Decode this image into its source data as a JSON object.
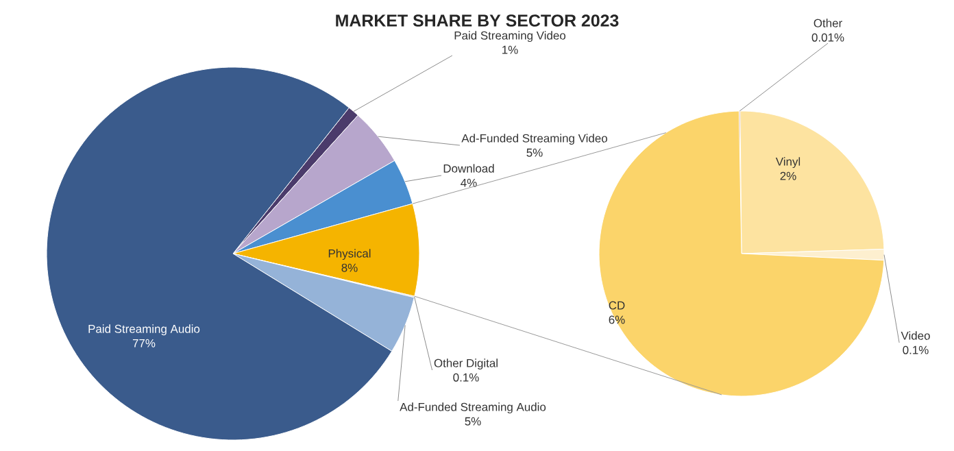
{
  "chart_data": [
    {
      "type": "pie",
      "title": "MARKET SHARE BY SECTOR 2023",
      "categories": [
        "Paid Streaming Video",
        "Ad-Funded Streaming Video",
        "Download",
        "Physical",
        "Other Digital",
        "Ad-Funded Streaming Audio",
        "Paid Streaming Audio"
      ],
      "values": [
        1,
        5,
        4,
        8,
        0.1,
        5,
        77
      ],
      "value_labels": [
        "1%",
        "5%",
        "4%",
        "8%",
        "0.1%",
        "5%",
        "77%"
      ],
      "colors": [
        "#4b3b6b",
        "#b7a6cc",
        "#4a8fd0",
        "#f5b400",
        "#c9c9c9",
        "#95b3d8",
        "#3a5b8c"
      ]
    },
    {
      "type": "pie",
      "categories": [
        "Other",
        "Vinyl",
        "Video",
        "CD"
      ],
      "values": [
        0.01,
        2,
        0.1,
        6
      ],
      "value_labels": [
        "0.01%",
        "2%",
        "0.1%",
        "6%"
      ],
      "colors": [
        "#a0522d",
        "#fde3a0",
        "#fdefcf",
        "#fbd46a"
      ]
    }
  ]
}
